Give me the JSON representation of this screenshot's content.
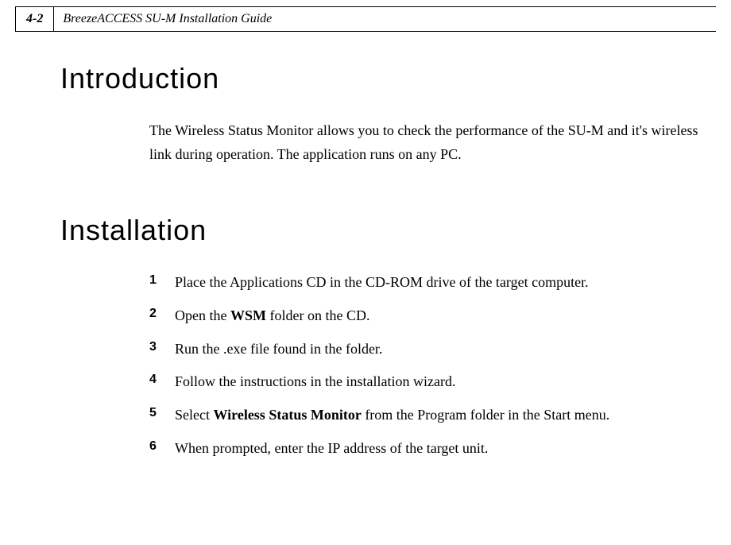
{
  "header": {
    "page_number": "4-2",
    "title": "BreezeACCESS SU-M Installation Guide"
  },
  "sections": {
    "intro": {
      "heading": "Introduction",
      "body": "The Wireless Status Monitor allows you to check the performance of the SU-M and it's wireless link during operation. The application runs on any PC."
    },
    "install": {
      "heading": "Installation",
      "steps": [
        {
          "n": "1",
          "pre": "Place the Applications CD in the CD-ROM drive of the target computer.",
          "bold": "",
          "post": ""
        },
        {
          "n": "2",
          "pre": "Open the ",
          "bold": "WSM",
          "post": " folder on the CD."
        },
        {
          "n": "3",
          "pre": "Run the .exe file found in the folder.",
          "bold": "",
          "post": ""
        },
        {
          "n": "4",
          "pre": "Follow the instructions in the installation wizard.",
          "bold": "",
          "post": ""
        },
        {
          "n": "5",
          "pre": "Select ",
          "bold": "Wireless Status Monitor",
          "post": " from the Program folder in the Start menu."
        },
        {
          "n": "6",
          "pre": "When prompted, enter the IP address of the target unit.",
          "bold": "",
          "post": ""
        }
      ]
    }
  }
}
